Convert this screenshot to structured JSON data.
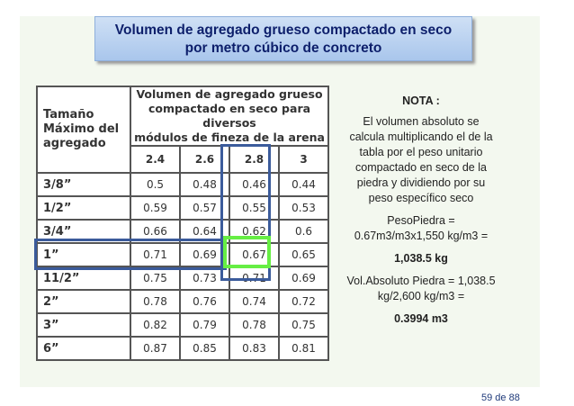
{
  "title": [
    "Volumen de agregado grueso compactado en seco",
    "por metro cúbico de concreto"
  ],
  "table": {
    "header": {
      "size": [
        "Tamaño",
        "Máximo del",
        "agregado"
      ],
      "volume": [
        "Volumen de agregado grueso",
        "compactado en seco para diversos",
        "módulos de fineza de la arena"
      ],
      "moduli": [
        "2.4",
        "2.6",
        "2.8",
        "3"
      ]
    },
    "rows": [
      [
        "3/8”",
        "0.5",
        "0.48",
        "0.46",
        "0.44"
      ],
      [
        "1/2”",
        "0.59",
        "0.57",
        "0.55",
        "0.53"
      ],
      [
        "3/4”",
        "0.66",
        "0.64",
        "0.62",
        "0.6"
      ],
      [
        "1”",
        "0.71",
        "0.69",
        "0.67",
        "0.65"
      ],
      [
        "11/2”",
        "0.75",
        "0.73",
        "0.71",
        "0.69"
      ],
      [
        "2”",
        "0.78",
        "0.76",
        "0.74",
        "0.72"
      ],
      [
        "3”",
        "0.82",
        "0.79",
        "0.78",
        "0.75"
      ],
      [
        "6”",
        "0.87",
        "0.85",
        "0.83",
        "0.81"
      ]
    ]
  },
  "note": {
    "title": "NOTA :",
    "text": [
      "El volumen absoluto se",
      "calcula multiplicando el de la",
      "tabla por el peso unitario",
      "compactado en seco de la",
      "piedra  y dividiendo por su",
      "peso específico seco"
    ],
    "calc1": [
      "PesoPiedra =",
      "0.67m3/m3x1,550 kg/m3 ="
    ],
    "result1": "1,038.5 kg",
    "calc2": [
      "Vol.Absoluto Piedra =  1,038.5",
      "kg/2,600 kg/m3 ="
    ],
    "result2": "0.3994 m3"
  },
  "page": "59 de 88"
}
